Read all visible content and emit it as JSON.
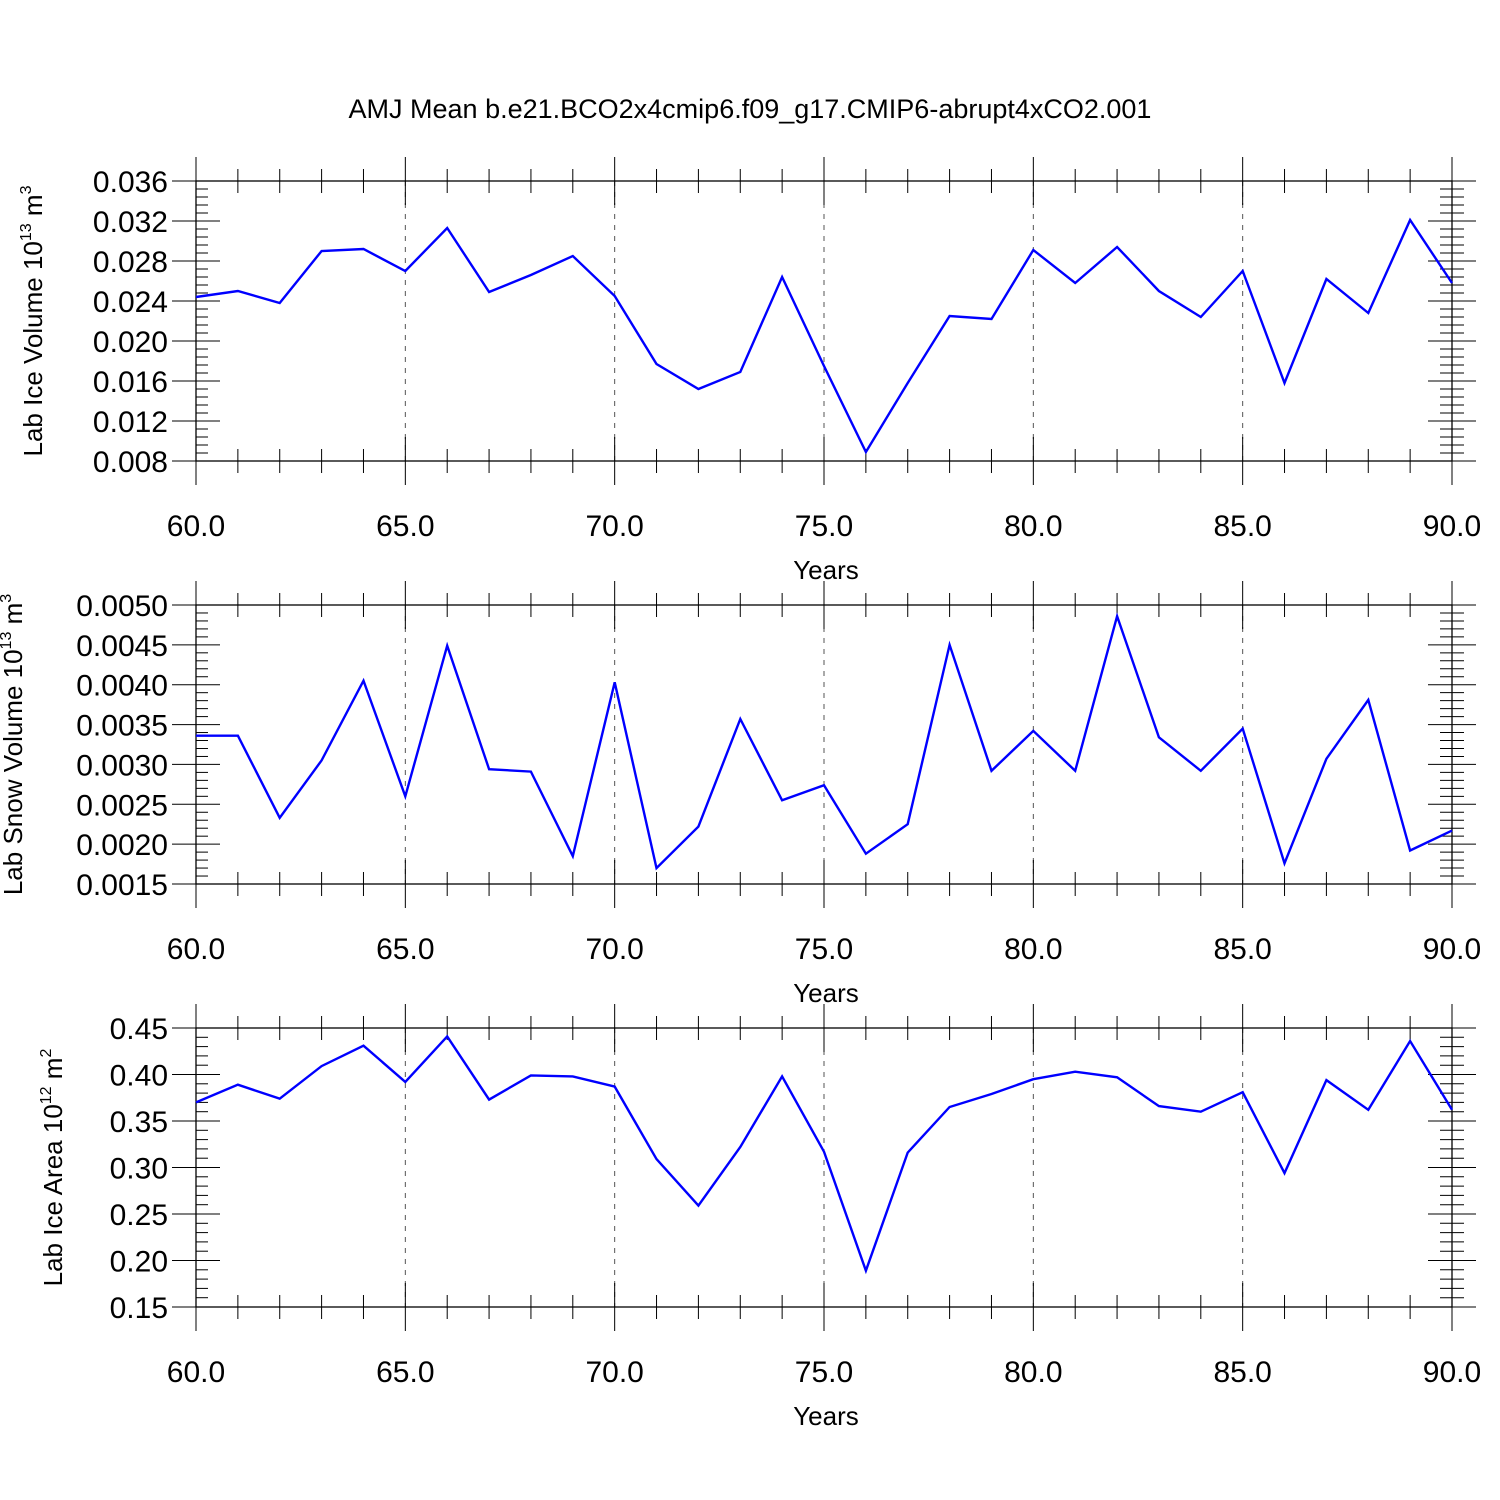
{
  "title": "AMJ Mean b.e21.BCO2x4cmip6.f09_g17.CMIP6-abrupt4xCO2.001",
  "colors": {
    "series": "#0000ff",
    "axis": "#000000",
    "grid": "#555555"
  },
  "chart_data": [
    {
      "type": "line",
      "xlabel": "Years",
      "ylabel": {
        "base": "Lab Ice Volume 10",
        "exp": "13",
        "unit": " m",
        "unit_exp": "3"
      },
      "xlim": [
        60,
        90
      ],
      "ylim": [
        0.008,
        0.036
      ],
      "xticks": [
        "60.0",
        "65.0",
        "70.0",
        "75.0",
        "80.0",
        "85.0",
        "90.0"
      ],
      "yticks": [
        "0.008",
        "0.012",
        "0.016",
        "0.020",
        "0.024",
        "0.028",
        "0.032",
        "0.036"
      ],
      "x": [
        60,
        61,
        62,
        63,
        64,
        65,
        66,
        67,
        68,
        69,
        70,
        71,
        72,
        73,
        74,
        75,
        76,
        77,
        78,
        79,
        80,
        81,
        82,
        83,
        84,
        85,
        86,
        87,
        88,
        89,
        90
      ],
      "values": [
        0.0244,
        0.025,
        0.0238,
        0.029,
        0.0292,
        0.027,
        0.0313,
        0.0249,
        0.0266,
        0.0285,
        0.0245,
        0.0177,
        0.0152,
        0.0169,
        0.0264,
        0.0175,
        0.0089,
        0.0158,
        0.0225,
        0.0222,
        0.0291,
        0.0258,
        0.0294,
        0.025,
        0.0224,
        0.027,
        0.0158,
        0.0262,
        0.0228,
        0.0321,
        0.0258
      ]
    },
    {
      "type": "line",
      "xlabel": "Years",
      "ylabel": {
        "base": "Lab Snow Volume 10",
        "exp": "13",
        "unit": " m",
        "unit_exp": "3"
      },
      "xlim": [
        60,
        90
      ],
      "ylim": [
        0.0015,
        0.005
      ],
      "xticks": [
        "60.0",
        "65.0",
        "70.0",
        "75.0",
        "80.0",
        "85.0",
        "90.0"
      ],
      "yticks": [
        "0.0015",
        "0.0020",
        "0.0025",
        "0.0030",
        "0.0035",
        "0.0040",
        "0.0045",
        "0.0050"
      ],
      "x": [
        60,
        61,
        62,
        63,
        64,
        65,
        66,
        67,
        68,
        69,
        70,
        71,
        72,
        73,
        74,
        75,
        76,
        77,
        78,
        79,
        80,
        81,
        82,
        83,
        84,
        85,
        86,
        87,
        88,
        89,
        90
      ],
      "values": [
        0.00336,
        0.00336,
        0.00233,
        0.00305,
        0.00405,
        0.0026,
        0.00449,
        0.00294,
        0.00291,
        0.00185,
        0.00403,
        0.0017,
        0.00222,
        0.00357,
        0.00255,
        0.00274,
        0.00188,
        0.00225,
        0.0045,
        0.00292,
        0.00342,
        0.00292,
        0.00486,
        0.00334,
        0.00292,
        0.00345,
        0.00176,
        0.00307,
        0.00381,
        0.00192,
        0.00217
      ]
    },
    {
      "type": "line",
      "xlabel": "Years",
      "ylabel": {
        "base": "Lab Ice Area 10",
        "exp": "12",
        "unit": " m",
        "unit_exp": "2"
      },
      "xlim": [
        60,
        90
      ],
      "ylim": [
        0.15,
        0.45
      ],
      "xticks": [
        "60.0",
        "65.0",
        "70.0",
        "75.0",
        "80.0",
        "85.0",
        "90.0"
      ],
      "yticks": [
        "0.15",
        "0.20",
        "0.25",
        "0.30",
        "0.35",
        "0.40",
        "0.45"
      ],
      "x": [
        60,
        61,
        62,
        63,
        64,
        65,
        66,
        67,
        68,
        69,
        70,
        71,
        72,
        73,
        74,
        75,
        76,
        77,
        78,
        79,
        80,
        81,
        82,
        83,
        84,
        85,
        86,
        87,
        88,
        89,
        90
      ],
      "values": [
        0.37,
        0.389,
        0.374,
        0.409,
        0.431,
        0.392,
        0.441,
        0.373,
        0.399,
        0.398,
        0.387,
        0.309,
        0.259,
        0.322,
        0.398,
        0.317,
        0.189,
        0.316,
        0.365,
        0.379,
        0.395,
        0.403,
        0.397,
        0.366,
        0.36,
        0.381,
        0.294,
        0.394,
        0.362,
        0.436,
        0.362
      ]
    }
  ]
}
